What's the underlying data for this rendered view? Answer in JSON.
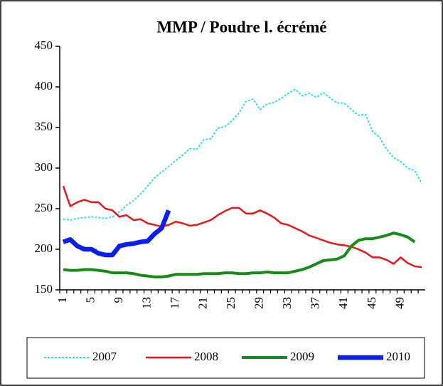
{
  "chart_data": {
    "type": "line",
    "title": "MMP / Poudre l. écrémé",
    "categories": [
      "1",
      null,
      null,
      null,
      "5",
      null,
      null,
      null,
      "9",
      null,
      null,
      null,
      "13",
      null,
      null,
      null,
      "17",
      null,
      null,
      null,
      "21",
      null,
      null,
      null,
      "25",
      null,
      null,
      null,
      "29",
      null,
      null,
      null,
      "33",
      null,
      null,
      null,
      "37",
      null,
      null,
      null,
      "41",
      null,
      null,
      null,
      "45",
      null,
      null,
      null,
      "49",
      null,
      null,
      null
    ],
    "series": [
      {
        "name": "2007",
        "color": "#33e0e6",
        "values": [
          237,
          236,
          238,
          239,
          240,
          239,
          238,
          240,
          246,
          254,
          260,
          268,
          278,
          288,
          295,
          302,
          309,
          316,
          324,
          323,
          335,
          336,
          349,
          351,
          358,
          368,
          382,
          385,
          372,
          379,
          381,
          386,
          392,
          397,
          389,
          392,
          387,
          393,
          386,
          380,
          380,
          372,
          365,
          366,
          345,
          338,
          323,
          313,
          308,
          300,
          297,
          281
        ]
      },
      {
        "name": "2008",
        "color": "#e81818",
        "values": [
          278,
          253,
          258,
          261,
          258,
          258,
          250,
          248,
          240,
          242,
          236,
          237,
          232,
          230,
          228,
          230,
          234,
          232,
          229,
          230,
          233,
          236,
          242,
          247,
          251,
          251,
          244,
          244,
          248,
          244,
          239,
          232,
          230,
          226,
          222,
          217,
          214,
          211,
          208,
          206,
          205,
          203,
          200,
          196,
          190,
          190,
          187,
          182,
          190,
          183,
          179,
          178
        ]
      },
      {
        "name": "2009",
        "color": "#178a17",
        "values": [
          175,
          174,
          174,
          175,
          175,
          174,
          173,
          171,
          171,
          171,
          170,
          168,
          167,
          166,
          166,
          167,
          169,
          169,
          169,
          169,
          170,
          170,
          170,
          171,
          171,
          170,
          170,
          171,
          171,
          172,
          171,
          171,
          171,
          173,
          175,
          178,
          182,
          186,
          187,
          188,
          192,
          204,
          211,
          213,
          213,
          215,
          217,
          220,
          218,
          215,
          209,
          null
        ]
      },
      {
        "name": "2010",
        "color": "#0a1ef0",
        "values": [
          209,
          212,
          204,
          200,
          200,
          195,
          193,
          193,
          204,
          206,
          207,
          209,
          210,
          219,
          226,
          248,
          null,
          null,
          null,
          null,
          null,
          null,
          null,
          null,
          null,
          null,
          null,
          null,
          null,
          null,
          null,
          null,
          null,
          null,
          null,
          null,
          null,
          null,
          null,
          null,
          null,
          null,
          null,
          null,
          null,
          null,
          null,
          null,
          null,
          null,
          null,
          null
        ]
      }
    ],
    "ylim": [
      150,
      450
    ],
    "yticks": [
      150,
      200,
      250,
      300,
      350,
      400,
      450
    ]
  }
}
